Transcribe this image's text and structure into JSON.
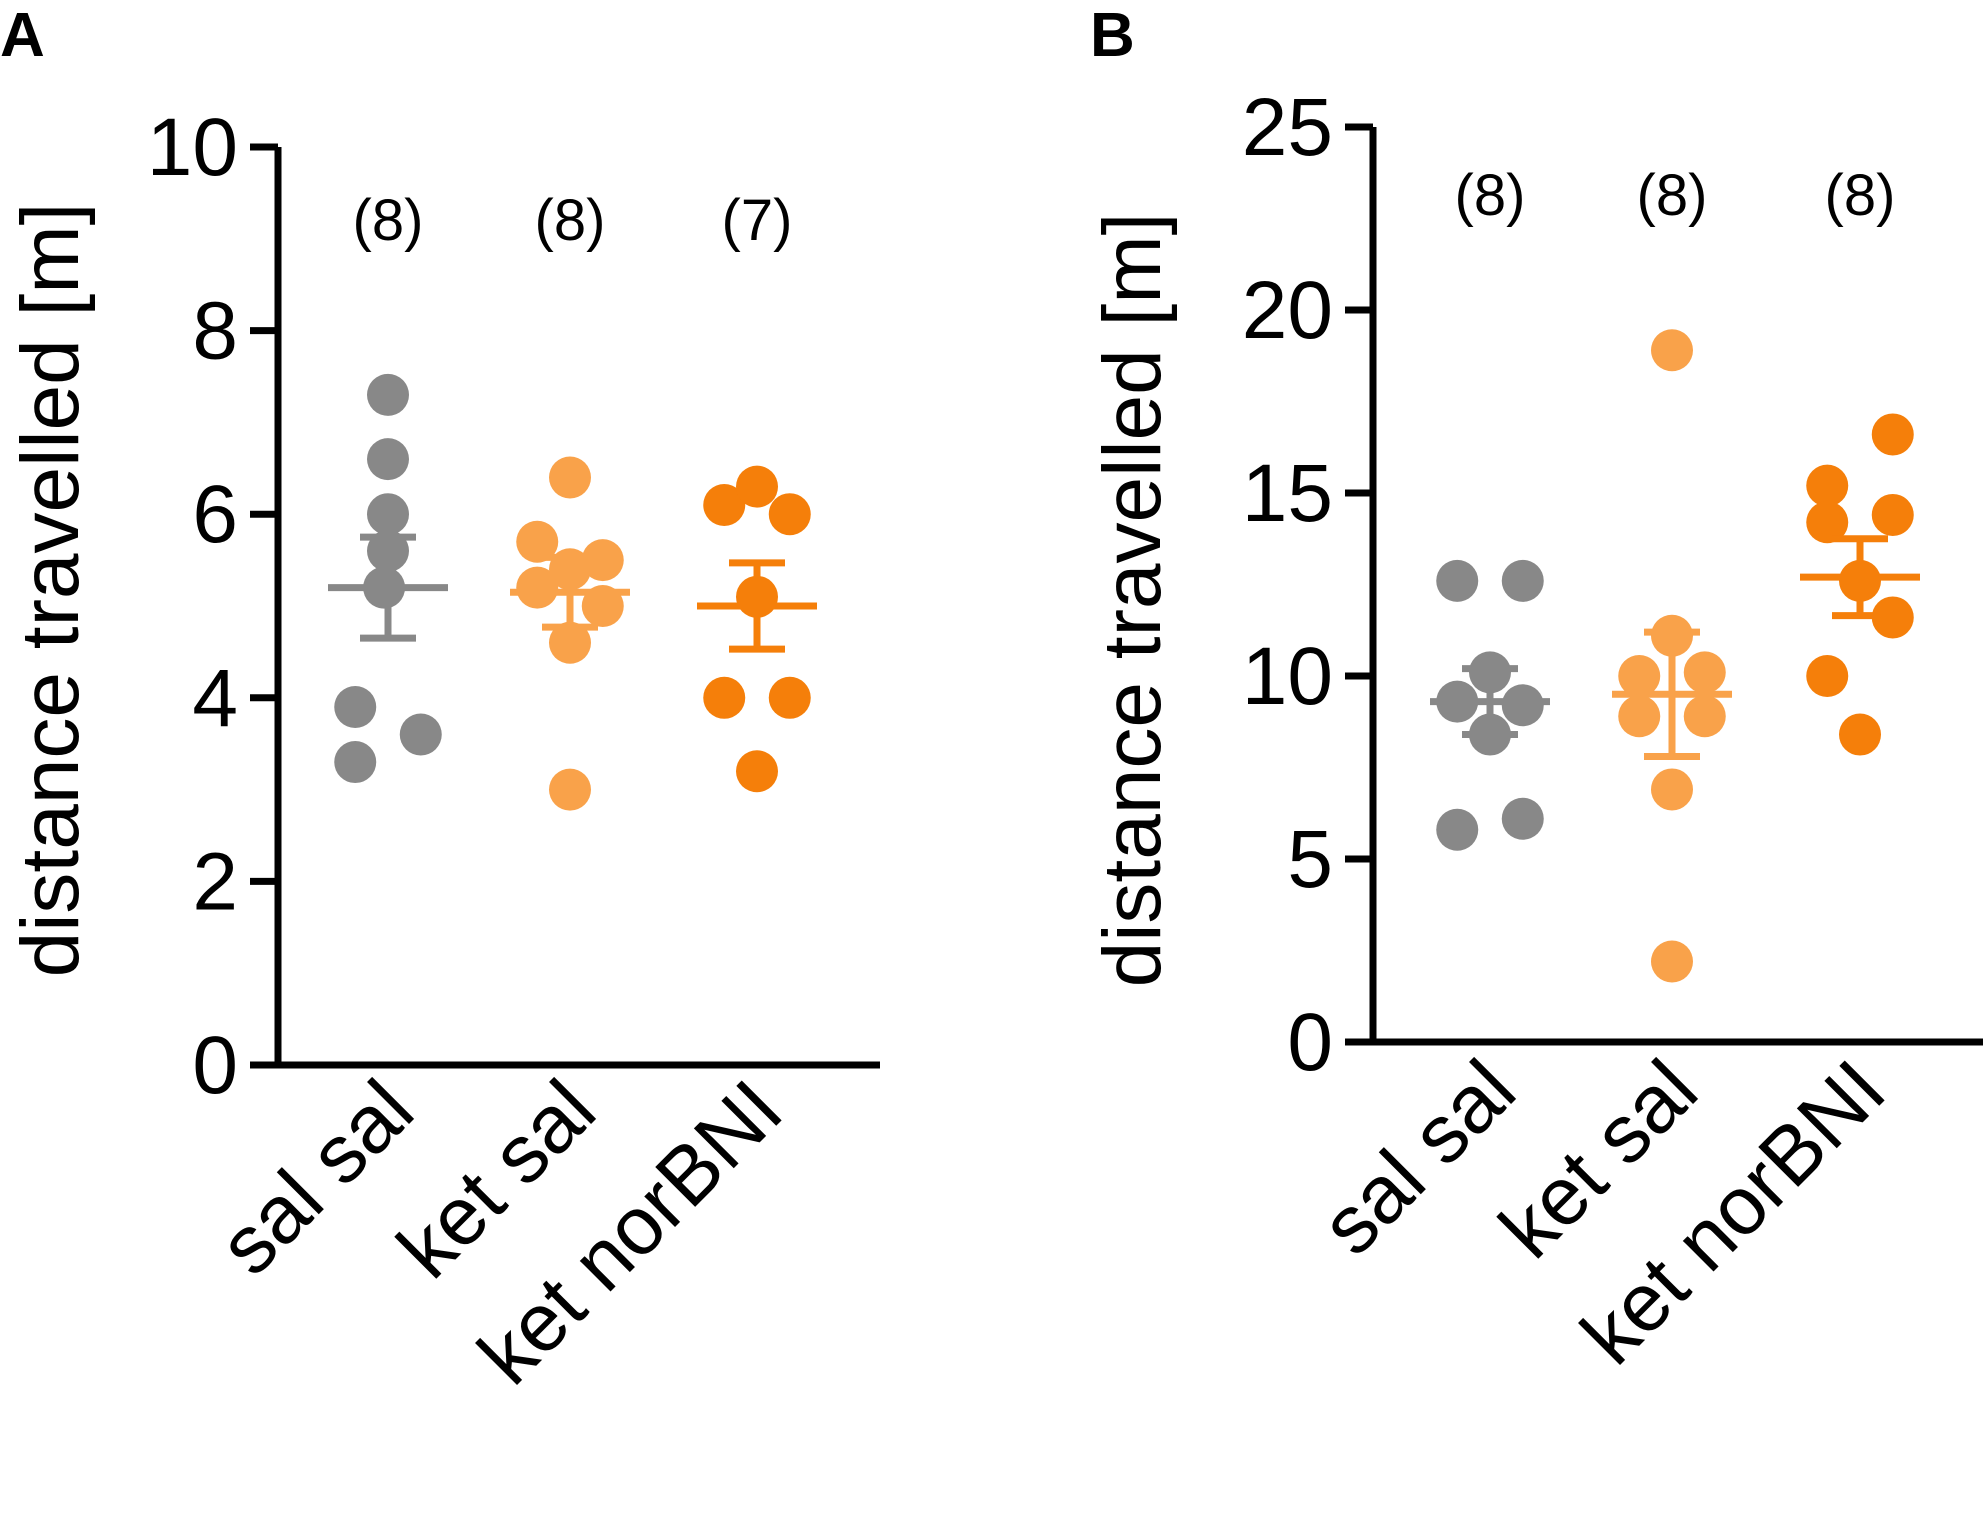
{
  "colors": {
    "sal_sal": "#888888",
    "ket_sal": "#f9a24a",
    "ket_norBNI": "#f57f0a"
  },
  "chart_data": [
    {
      "panel": "A",
      "type": "scatter",
      "ylabel": "distance travelled [m]",
      "ylim": [
        0,
        10
      ],
      "yticks": [
        "0",
        "2",
        "4",
        "6",
        "8",
        "10"
      ],
      "categories": [
        "sal sal",
        "ket sal",
        "ket norBNI"
      ],
      "n_labels": [
        "(8)",
        "(8)",
        "(7)"
      ],
      "series": [
        {
          "name": "sal sal",
          "points": [
            [
              0.0,
              7.3
            ],
            [
              0.0,
              6.6
            ],
            [
              0.0,
              6.0
            ],
            [
              0.0,
              5.6
            ],
            [
              -0.05,
              5.2
            ],
            [
              -0.42,
              3.9
            ],
            [
              0.42,
              3.6
            ],
            [
              -0.42,
              3.3
            ]
          ],
          "mean": 5.2,
          "sem": 0.55
        },
        {
          "name": "ket sal",
          "points": [
            [
              0.0,
              6.4
            ],
            [
              -0.42,
              5.7
            ],
            [
              0.42,
              5.5
            ],
            [
              0.0,
              5.4
            ],
            [
              -0.42,
              5.2
            ],
            [
              0.42,
              5.0
            ],
            [
              0.0,
              4.6
            ],
            [
              0.0,
              3.0
            ]
          ],
          "mean": 5.15,
          "sem": 0.38
        },
        {
          "name": "ket norBNI",
          "points": [
            [
              -0.42,
              6.1
            ],
            [
              0.0,
              6.3
            ],
            [
              0.42,
              6.0
            ],
            [
              0.0,
              5.1
            ],
            [
              -0.42,
              4.0
            ],
            [
              0.42,
              4.0
            ],
            [
              0.0,
              3.2
            ]
          ],
          "mean": 5.0,
          "sem": 0.47
        }
      ]
    },
    {
      "panel": "B",
      "type": "scatter",
      "ylabel": "distance travelled [m]",
      "ylim": [
        0,
        25
      ],
      "yticks": [
        "0",
        "5",
        "10",
        "15",
        "20",
        "25"
      ],
      "categories": [
        "sal sal",
        "ket sal",
        "ket norBNI"
      ],
      "n_labels": [
        "(8)",
        "(8)",
        "(8)"
      ],
      "series": [
        {
          "name": "sal sal",
          "points": [
            [
              -0.42,
              12.6
            ],
            [
              0.42,
              12.6
            ],
            [
              0.0,
              10.1
            ],
            [
              -0.42,
              9.3
            ],
            [
              0.42,
              9.2
            ],
            [
              0.0,
              8.4
            ],
            [
              -0.42,
              5.8
            ],
            [
              0.42,
              6.1
            ]
          ],
          "mean": 9.3,
          "sem": 0.9
        },
        {
          "name": "ket sal",
          "points": [
            [
              0.0,
              18.9
            ],
            [
              0.0,
              11.1
            ],
            [
              -0.42,
              10.0
            ],
            [
              0.42,
              10.1
            ],
            [
              -0.42,
              8.9
            ],
            [
              0.42,
              8.9
            ],
            [
              0.0,
              6.9
            ],
            [
              0.0,
              2.2
            ]
          ],
          "mean": 9.5,
          "sem": 1.7
        },
        {
          "name": "ket norBNI",
          "points": [
            [
              0.42,
              16.6
            ],
            [
              -0.42,
              15.2
            ],
            [
              -0.42,
              14.2
            ],
            [
              0.42,
              14.4
            ],
            [
              0.0,
              12.6
            ],
            [
              0.42,
              11.6
            ],
            [
              -0.42,
              10.0
            ],
            [
              0.0,
              8.4
            ]
          ],
          "mean": 12.7,
          "sem": 1.05
        }
      ]
    }
  ]
}
